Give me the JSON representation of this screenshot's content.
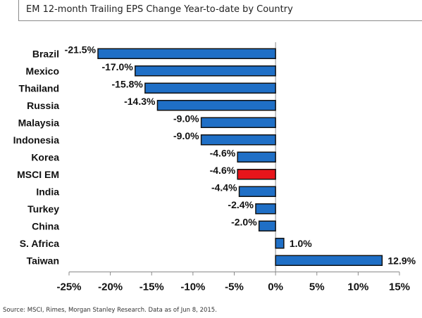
{
  "title": "EM 12-month Trailing EPS Change Year-to-date by Country",
  "source": "Source: MSCI, Rimes, Morgan Stanley Research. Data as of Jun 8, 2015.",
  "colors": {
    "bar": "#1f6fc6",
    "highlight": "#e8151b",
    "bar_stroke": "#111111",
    "axis": "#8a8a8a"
  },
  "chart_data": {
    "type": "bar",
    "orientation": "horizontal",
    "title": "EM 12-month Trailing EPS Change Year-to-date by Country",
    "xlabel": "",
    "ylabel": "",
    "xlim": [
      -25,
      15
    ],
    "x_ticks": [
      -25,
      -20,
      -15,
      -10,
      -5,
      0,
      5,
      10,
      15
    ],
    "x_tick_labels": [
      "-25%",
      "-20%",
      "-15%",
      "-10%",
      "-5%",
      "0%",
      "5%",
      "10%",
      "15%"
    ],
    "grid": false,
    "legend": "none",
    "categories": [
      "Brazil",
      "Mexico",
      "Thailand",
      "Russia",
      "Malaysia",
      "Indonesia",
      "Korea",
      "MSCI EM",
      "India",
      "Turkey",
      "China",
      "S. Africa",
      "Taiwan"
    ],
    "values": [
      -21.5,
      -17.0,
      -15.8,
      -14.3,
      -9.0,
      -9.0,
      -4.6,
      -4.6,
      -4.4,
      -2.4,
      -2.0,
      1.0,
      12.9
    ],
    "value_labels": [
      "-21.5%",
      "-17.0%",
      "-15.8%",
      "-14.3%",
      "-9.0%",
      "-9.0%",
      "-4.6%",
      "-4.6%",
      "-4.4%",
      "-2.4%",
      "-2.0%",
      "1.0%",
      "12.9%"
    ],
    "highlight": "MSCI EM"
  }
}
